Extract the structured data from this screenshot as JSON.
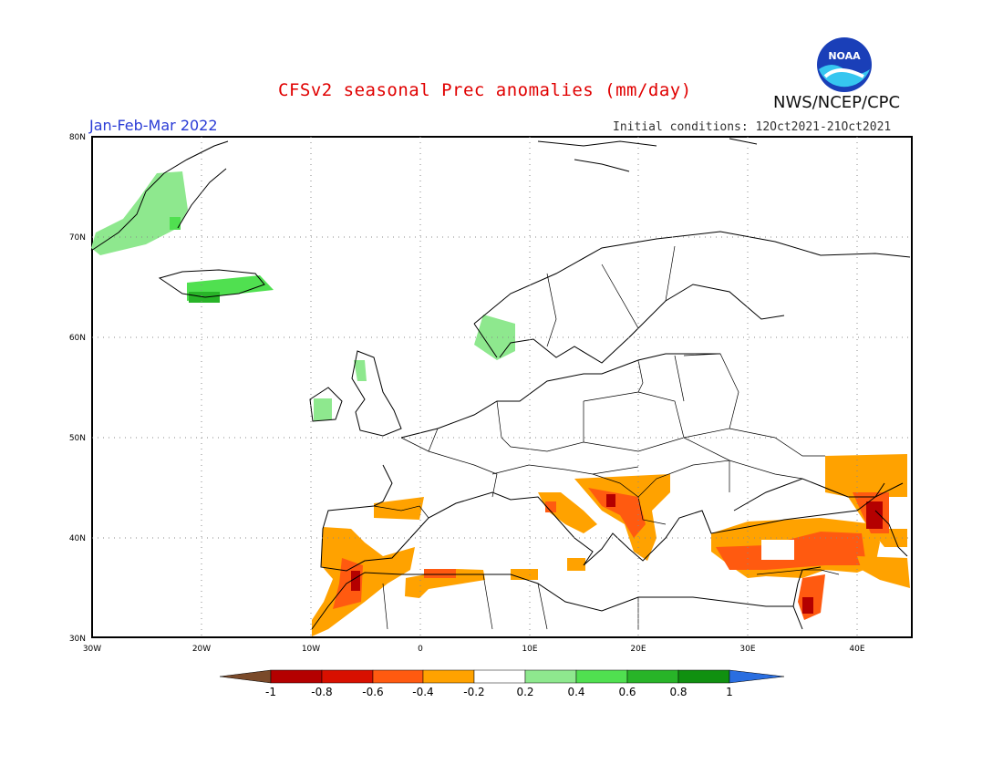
{
  "header": {
    "title": "CFSv2 seasonal Prec anomalies (mm/day)",
    "period": "Jan-Feb-Mar 2022",
    "initial_conditions": "Initial conditions: 12Oct2021-21Oct2021",
    "agency": "NWS/NCEP/CPC",
    "logo_text": "NOAA"
  },
  "map": {
    "lat_labels": [
      "80N",
      "70N",
      "60N",
      "50N",
      "40N",
      "30N"
    ],
    "lon_labels": [
      "30W",
      "20W",
      "10W",
      "0",
      "10E",
      "20E",
      "30E",
      "40E"
    ],
    "lon_range": [
      -30,
      45
    ],
    "lat_range": [
      30,
      80
    ]
  },
  "legend": {
    "ticks": [
      "-1",
      "-0.8",
      "-0.6",
      "-0.4",
      "-0.2",
      "0.2",
      "0.4",
      "0.6",
      "0.8",
      "1"
    ],
    "colors": [
      "#7a4a2a",
      "#b40000",
      "#e02000",
      "#ff5a10",
      "#ffa200",
      "#ffffff",
      "#8ee88e",
      "#50e050",
      "#28b428",
      "#109010",
      "#2a6ee0"
    ]
  },
  "colors": {
    "dry_strong": "#b40000",
    "dry_mid": "#ff5a10",
    "dry_weak": "#ffa200",
    "wet_weak": "#8ee88e",
    "wet_mid": "#50e050",
    "wet_strong": "#28b428",
    "title_red": "#e00000",
    "period_blue": "#2a3cd6"
  }
}
